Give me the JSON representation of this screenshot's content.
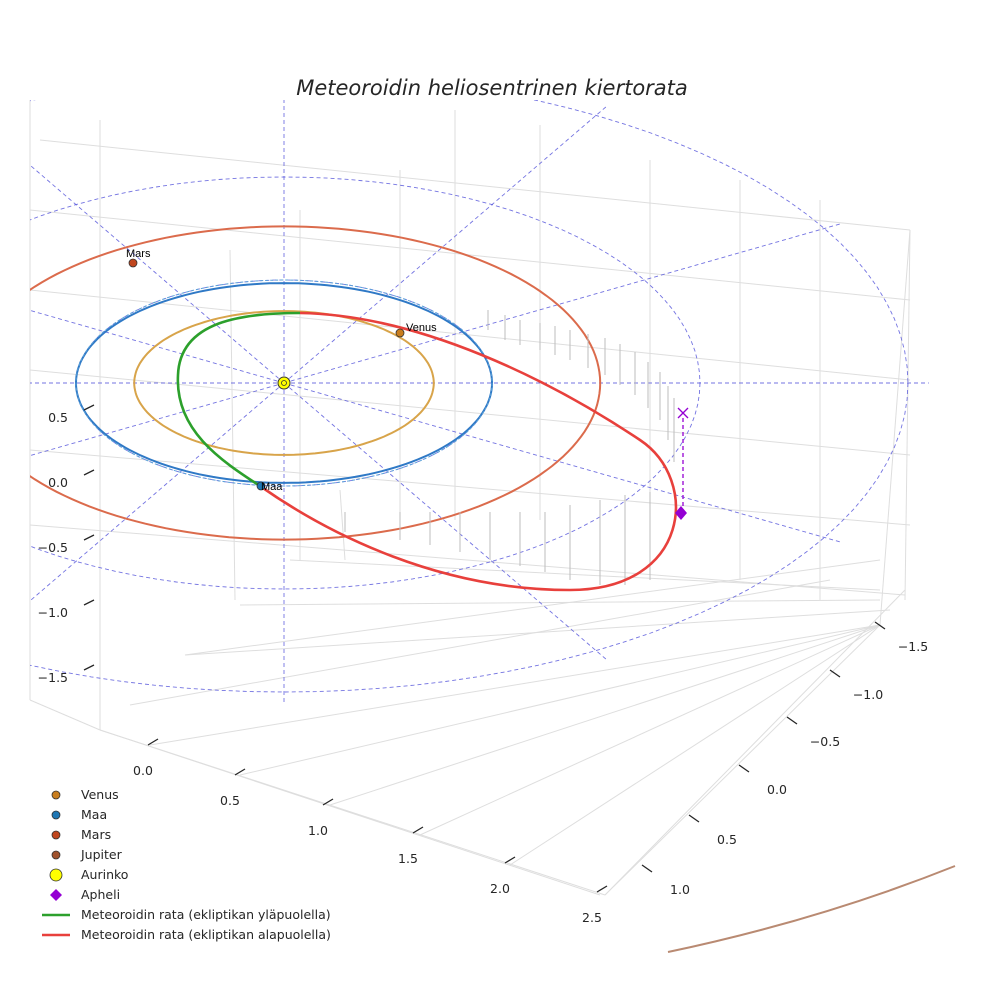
{
  "chart_data": {
    "type": "line",
    "title": "Meteoroidin heliosentrinen kiertorata",
    "projection": "3d",
    "axes": {
      "z_ticks": [
        "0.5",
        "0.0",
        "−0.5",
        "−1.0",
        "−1.5"
      ],
      "x_ticks": [
        "0.0",
        "0.5",
        "1.0",
        "1.5",
        "2.0",
        "2.5"
      ],
      "y_ticks": [
        "−1.5",
        "−1.0",
        "−0.5",
        "0.0",
        "0.5",
        "1.0"
      ]
    },
    "planets": [
      {
        "name": "Venus",
        "orbit_radius_au": 0.72,
        "marker_color": "#c87d1e",
        "orbit_color": "#d8a44a",
        "labeled": true
      },
      {
        "name": "Maa",
        "orbit_radius_au": 1.0,
        "marker_color": "#1f77b4",
        "orbit_color": "#2f79c6",
        "labeled": true
      },
      {
        "name": "Mars",
        "orbit_radius_au": 1.52,
        "marker_color": "#c0461e",
        "orbit_color": "#db6b4c",
        "labeled": true
      },
      {
        "name": "Jupiter",
        "orbit_radius_au": 5.2,
        "marker_color": "#a0522d",
        "orbit_color": "#b98a72",
        "labeled": false
      }
    ],
    "legend": [
      {
        "label": "Venus",
        "kind": "dot",
        "color": "#c87d1e"
      },
      {
        "label": "Maa",
        "kind": "dot",
        "color": "#1f77b4"
      },
      {
        "label": "Mars",
        "kind": "dot",
        "color": "#c0461e"
      },
      {
        "label": "Jupiter",
        "kind": "dot",
        "color": "#a0522d"
      },
      {
        "label": "Aurinko",
        "kind": "sun",
        "color": "#ffff00"
      },
      {
        "label": "Apheli",
        "kind": "diamond",
        "color": "#9400d3"
      },
      {
        "label": "Meteoroidin rata (ekliptikan yläpuolella)",
        "kind": "line",
        "color": "#2ca02c"
      },
      {
        "label": "Meteoroidin rata (ekliptikan alapuolella)",
        "kind": "line",
        "color": "#e8403c"
      }
    ],
    "meteoroid_orbit": {
      "above_ecliptic_color": "#2ca02c",
      "below_ecliptic_color": "#e8403c"
    },
    "ecliptic_grid_color": "#5b5bdc",
    "legend_location": "lower-left"
  }
}
